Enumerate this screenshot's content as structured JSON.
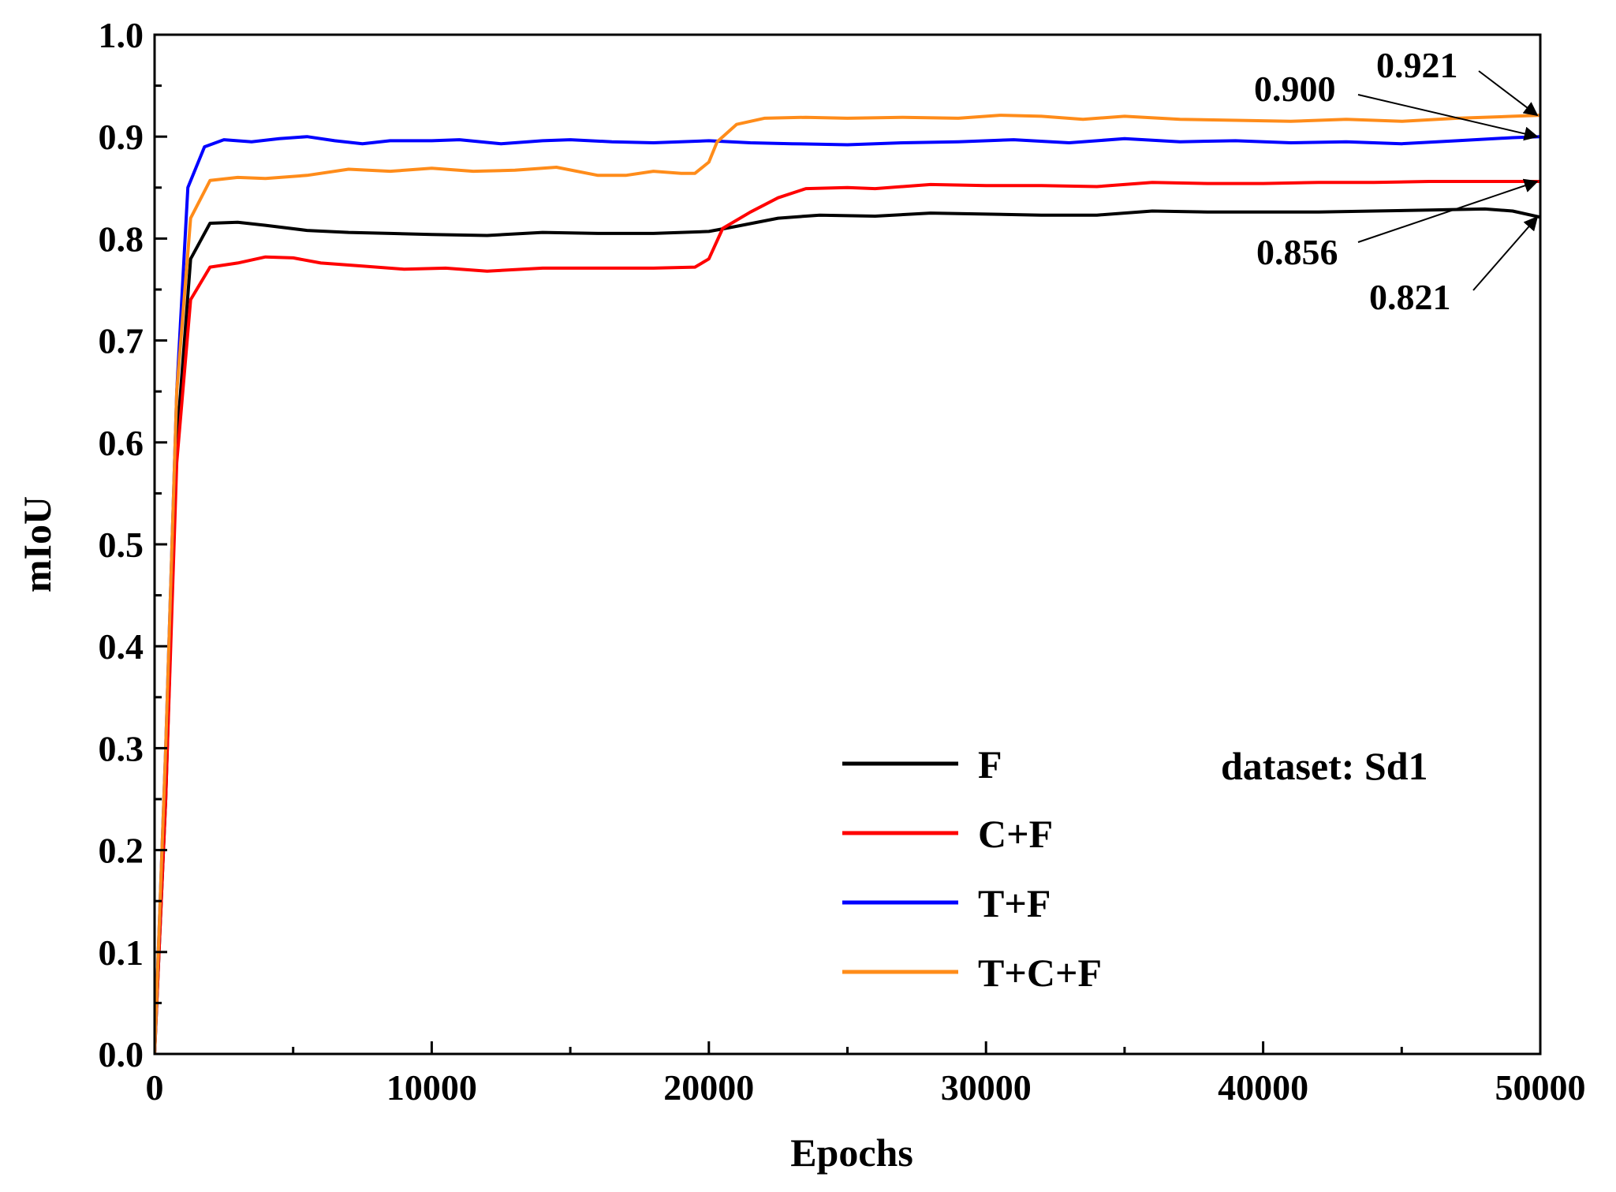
{
  "chart_data": {
    "type": "line",
    "title": "",
    "xlabel": "Epochs",
    "ylabel": "mIoU",
    "xlim": [
      0,
      50000
    ],
    "ylim": [
      0.0,
      1.0
    ],
    "x_ticks": [
      "0",
      "10000",
      "20000",
      "30000",
      "40000",
      "50000"
    ],
    "y_ticks": [
      "0.0",
      "0.1",
      "0.2",
      "0.3",
      "0.4",
      "0.5",
      "0.6",
      "0.7",
      "0.8",
      "0.9",
      "1.0"
    ],
    "grid": false,
    "legend_position": "bottom-right",
    "dataset_label": "dataset: Sd1",
    "series": [
      {
        "name": "F",
        "color": "#000000",
        "points": [
          [
            0,
            0.0
          ],
          [
            400,
            0.25
          ],
          [
            800,
            0.6
          ],
          [
            1300,
            0.78
          ],
          [
            2000,
            0.815
          ],
          [
            3000,
            0.816
          ],
          [
            4000,
            0.813
          ],
          [
            5500,
            0.808
          ],
          [
            7000,
            0.806
          ],
          [
            8500,
            0.805
          ],
          [
            10000,
            0.804
          ],
          [
            12000,
            0.803
          ],
          [
            14000,
            0.806
          ],
          [
            16000,
            0.805
          ],
          [
            18000,
            0.805
          ],
          [
            20000,
            0.807
          ],
          [
            21000,
            0.812
          ],
          [
            22500,
            0.82
          ],
          [
            24000,
            0.823
          ],
          [
            26000,
            0.822
          ],
          [
            28000,
            0.825
          ],
          [
            30000,
            0.824
          ],
          [
            32000,
            0.823
          ],
          [
            34000,
            0.823
          ],
          [
            36000,
            0.827
          ],
          [
            38000,
            0.826
          ],
          [
            40000,
            0.826
          ],
          [
            42000,
            0.826
          ],
          [
            44000,
            0.827
          ],
          [
            46000,
            0.828
          ],
          [
            48000,
            0.829
          ],
          [
            49000,
            0.827
          ],
          [
            50000,
            0.821
          ]
        ]
      },
      {
        "name": "C+F",
        "color": "#ff0000",
        "points": [
          [
            0,
            0.0
          ],
          [
            400,
            0.25
          ],
          [
            800,
            0.58
          ],
          [
            1300,
            0.74
          ],
          [
            2000,
            0.772
          ],
          [
            3000,
            0.776
          ],
          [
            4000,
            0.782
          ],
          [
            5000,
            0.781
          ],
          [
            6000,
            0.776
          ],
          [
            7500,
            0.773
          ],
          [
            9000,
            0.77
          ],
          [
            10500,
            0.771
          ],
          [
            12000,
            0.768
          ],
          [
            14000,
            0.771
          ],
          [
            16000,
            0.771
          ],
          [
            18000,
            0.771
          ],
          [
            19500,
            0.772
          ],
          [
            20000,
            0.78
          ],
          [
            20500,
            0.81
          ],
          [
            21500,
            0.826
          ],
          [
            22500,
            0.84
          ],
          [
            23500,
            0.849
          ],
          [
            25000,
            0.85
          ],
          [
            26000,
            0.849
          ],
          [
            28000,
            0.853
          ],
          [
            30000,
            0.852
          ],
          [
            32000,
            0.852
          ],
          [
            34000,
            0.851
          ],
          [
            36000,
            0.855
          ],
          [
            38000,
            0.854
          ],
          [
            40000,
            0.854
          ],
          [
            42000,
            0.855
          ],
          [
            44000,
            0.855
          ],
          [
            46000,
            0.856
          ],
          [
            48000,
            0.856
          ],
          [
            50000,
            0.856
          ]
        ]
      },
      {
        "name": "T+F",
        "color": "#0000ff",
        "points": [
          [
            0,
            0.0
          ],
          [
            400,
            0.3
          ],
          [
            800,
            0.65
          ],
          [
            1200,
            0.85
          ],
          [
            1800,
            0.89
          ],
          [
            2500,
            0.897
          ],
          [
            3500,
            0.895
          ],
          [
            4500,
            0.898
          ],
          [
            5500,
            0.9
          ],
          [
            6500,
            0.896
          ],
          [
            7500,
            0.893
          ],
          [
            8500,
            0.896
          ],
          [
            10000,
            0.896
          ],
          [
            11000,
            0.897
          ],
          [
            12500,
            0.893
          ],
          [
            14000,
            0.896
          ],
          [
            15000,
            0.897
          ],
          [
            16500,
            0.895
          ],
          [
            18000,
            0.894
          ],
          [
            20000,
            0.896
          ],
          [
            21500,
            0.894
          ],
          [
            23000,
            0.893
          ],
          [
            25000,
            0.892
          ],
          [
            27000,
            0.894
          ],
          [
            29000,
            0.895
          ],
          [
            31000,
            0.897
          ],
          [
            33000,
            0.894
          ],
          [
            35000,
            0.898
          ],
          [
            37000,
            0.895
          ],
          [
            39000,
            0.896
          ],
          [
            41000,
            0.894
          ],
          [
            43000,
            0.895
          ],
          [
            45000,
            0.893
          ],
          [
            47000,
            0.896
          ],
          [
            49000,
            0.899
          ],
          [
            50000,
            0.9
          ]
        ]
      },
      {
        "name": "T+C+F",
        "color": "#ff8c1a",
        "points": [
          [
            0,
            0.0
          ],
          [
            400,
            0.3
          ],
          [
            800,
            0.65
          ],
          [
            1300,
            0.82
          ],
          [
            2000,
            0.857
          ],
          [
            3000,
            0.86
          ],
          [
            4000,
            0.859
          ],
          [
            5500,
            0.862
          ],
          [
            7000,
            0.868
          ],
          [
            8500,
            0.866
          ],
          [
            10000,
            0.869
          ],
          [
            11500,
            0.866
          ],
          [
            13000,
            0.867
          ],
          [
            14500,
            0.87
          ],
          [
            16000,
            0.862
          ],
          [
            17000,
            0.862
          ],
          [
            18000,
            0.866
          ],
          [
            19000,
            0.864
          ],
          [
            19500,
            0.864
          ],
          [
            20000,
            0.875
          ],
          [
            20300,
            0.895
          ],
          [
            21000,
            0.912
          ],
          [
            22000,
            0.918
          ],
          [
            23500,
            0.919
          ],
          [
            25000,
            0.918
          ],
          [
            27000,
            0.919
          ],
          [
            29000,
            0.918
          ],
          [
            30500,
            0.921
          ],
          [
            32000,
            0.92
          ],
          [
            33500,
            0.917
          ],
          [
            35000,
            0.92
          ],
          [
            37000,
            0.917
          ],
          [
            39000,
            0.916
          ],
          [
            41000,
            0.915
          ],
          [
            43000,
            0.917
          ],
          [
            45000,
            0.915
          ],
          [
            47000,
            0.918
          ],
          [
            49000,
            0.92
          ],
          [
            50000,
            0.921
          ]
        ]
      }
    ],
    "annotations": [
      {
        "label": "0.921",
        "series": "T+C+F",
        "x": 50000,
        "y": 0.921
      },
      {
        "label": "0.900",
        "series": "T+F",
        "x": 50000,
        "y": 0.9
      },
      {
        "label": "0.856",
        "series": "C+F",
        "x": 50000,
        "y": 0.856
      },
      {
        "label": "0.821",
        "series": "F",
        "x": 50000,
        "y": 0.821
      }
    ]
  }
}
